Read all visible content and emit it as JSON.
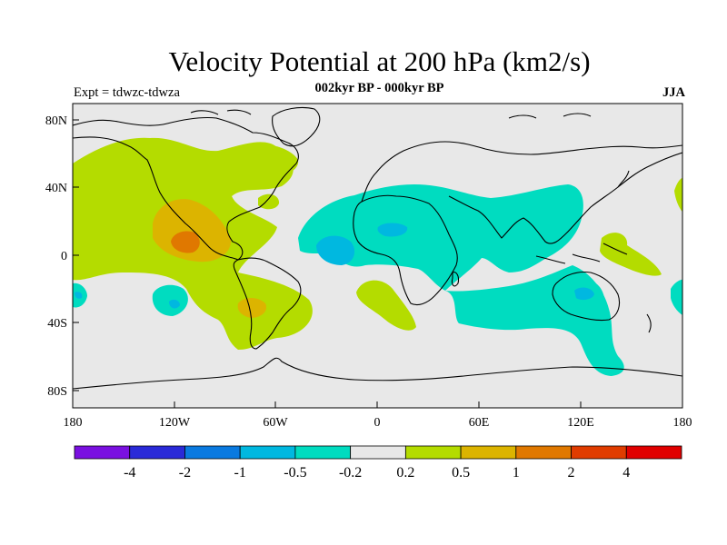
{
  "title": "Velocity Potential at 200 hPa (km2/s)",
  "subtitle": "002kyr BP - 000kyr BP",
  "left_label": "Expt = tdwzc-tdwza",
  "right_label": "JJA",
  "axes": {
    "x_ticks": [
      "180",
      "120W",
      "60W",
      "0",
      "60E",
      "120E",
      "180"
    ],
    "y_ticks": [
      "80N",
      "40N",
      "0",
      "40S",
      "80S"
    ]
  },
  "colorbar": {
    "colors": [
      "#7a10e0",
      "#2a2ad8",
      "#0a7ae0",
      "#00b8e0",
      "#00dcc0",
      "#e8e8e8",
      "#b4dc00",
      "#dcb400",
      "#e07800",
      "#e03c00",
      "#e00000"
    ],
    "labels": [
      "-4",
      "-2",
      "-1",
      "-0.5",
      "-0.2",
      "0.2",
      "0.5",
      "1",
      "2",
      "4"
    ]
  },
  "colors": {
    "background_fill": "#e8e8e8",
    "neg_0_2": "#00dcc0",
    "neg_0_5": "#00b8e0",
    "pos_0_2": "#b4dc00",
    "pos_0_5": "#dcb400",
    "pos_1": "#e07800"
  }
}
